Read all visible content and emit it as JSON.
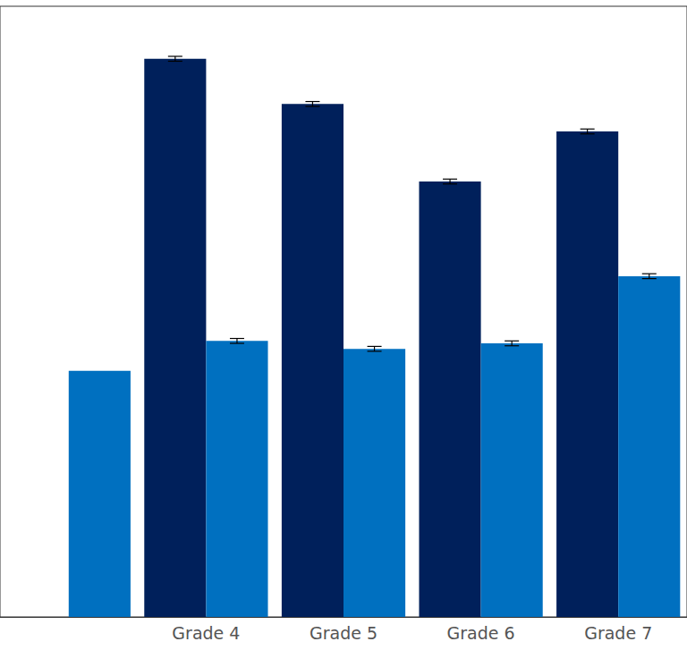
{
  "chart_data": {
    "type": "bar",
    "categories": [
      null,
      "Grade 4",
      "Grade 5",
      "Grade 6",
      "Grade 7"
    ],
    "series": [
      {
        "color": "#00205b",
        "values": [
          null,
          91.4,
          84.0,
          71.3,
          79.5
        ],
        "errors": [
          null,
          0.4,
          0.4,
          0.4,
          0.4
        ]
      },
      {
        "color": "#0070c0",
        "values": [
          40.3,
          45.2,
          43.9,
          44.8,
          55.8
        ],
        "errors": [
          null,
          0.4,
          0.4,
          0.4,
          0.4
        ]
      }
    ],
    "ylim": [
      0,
      100
    ],
    "grid": false,
    "tick_labels": "x"
  }
}
